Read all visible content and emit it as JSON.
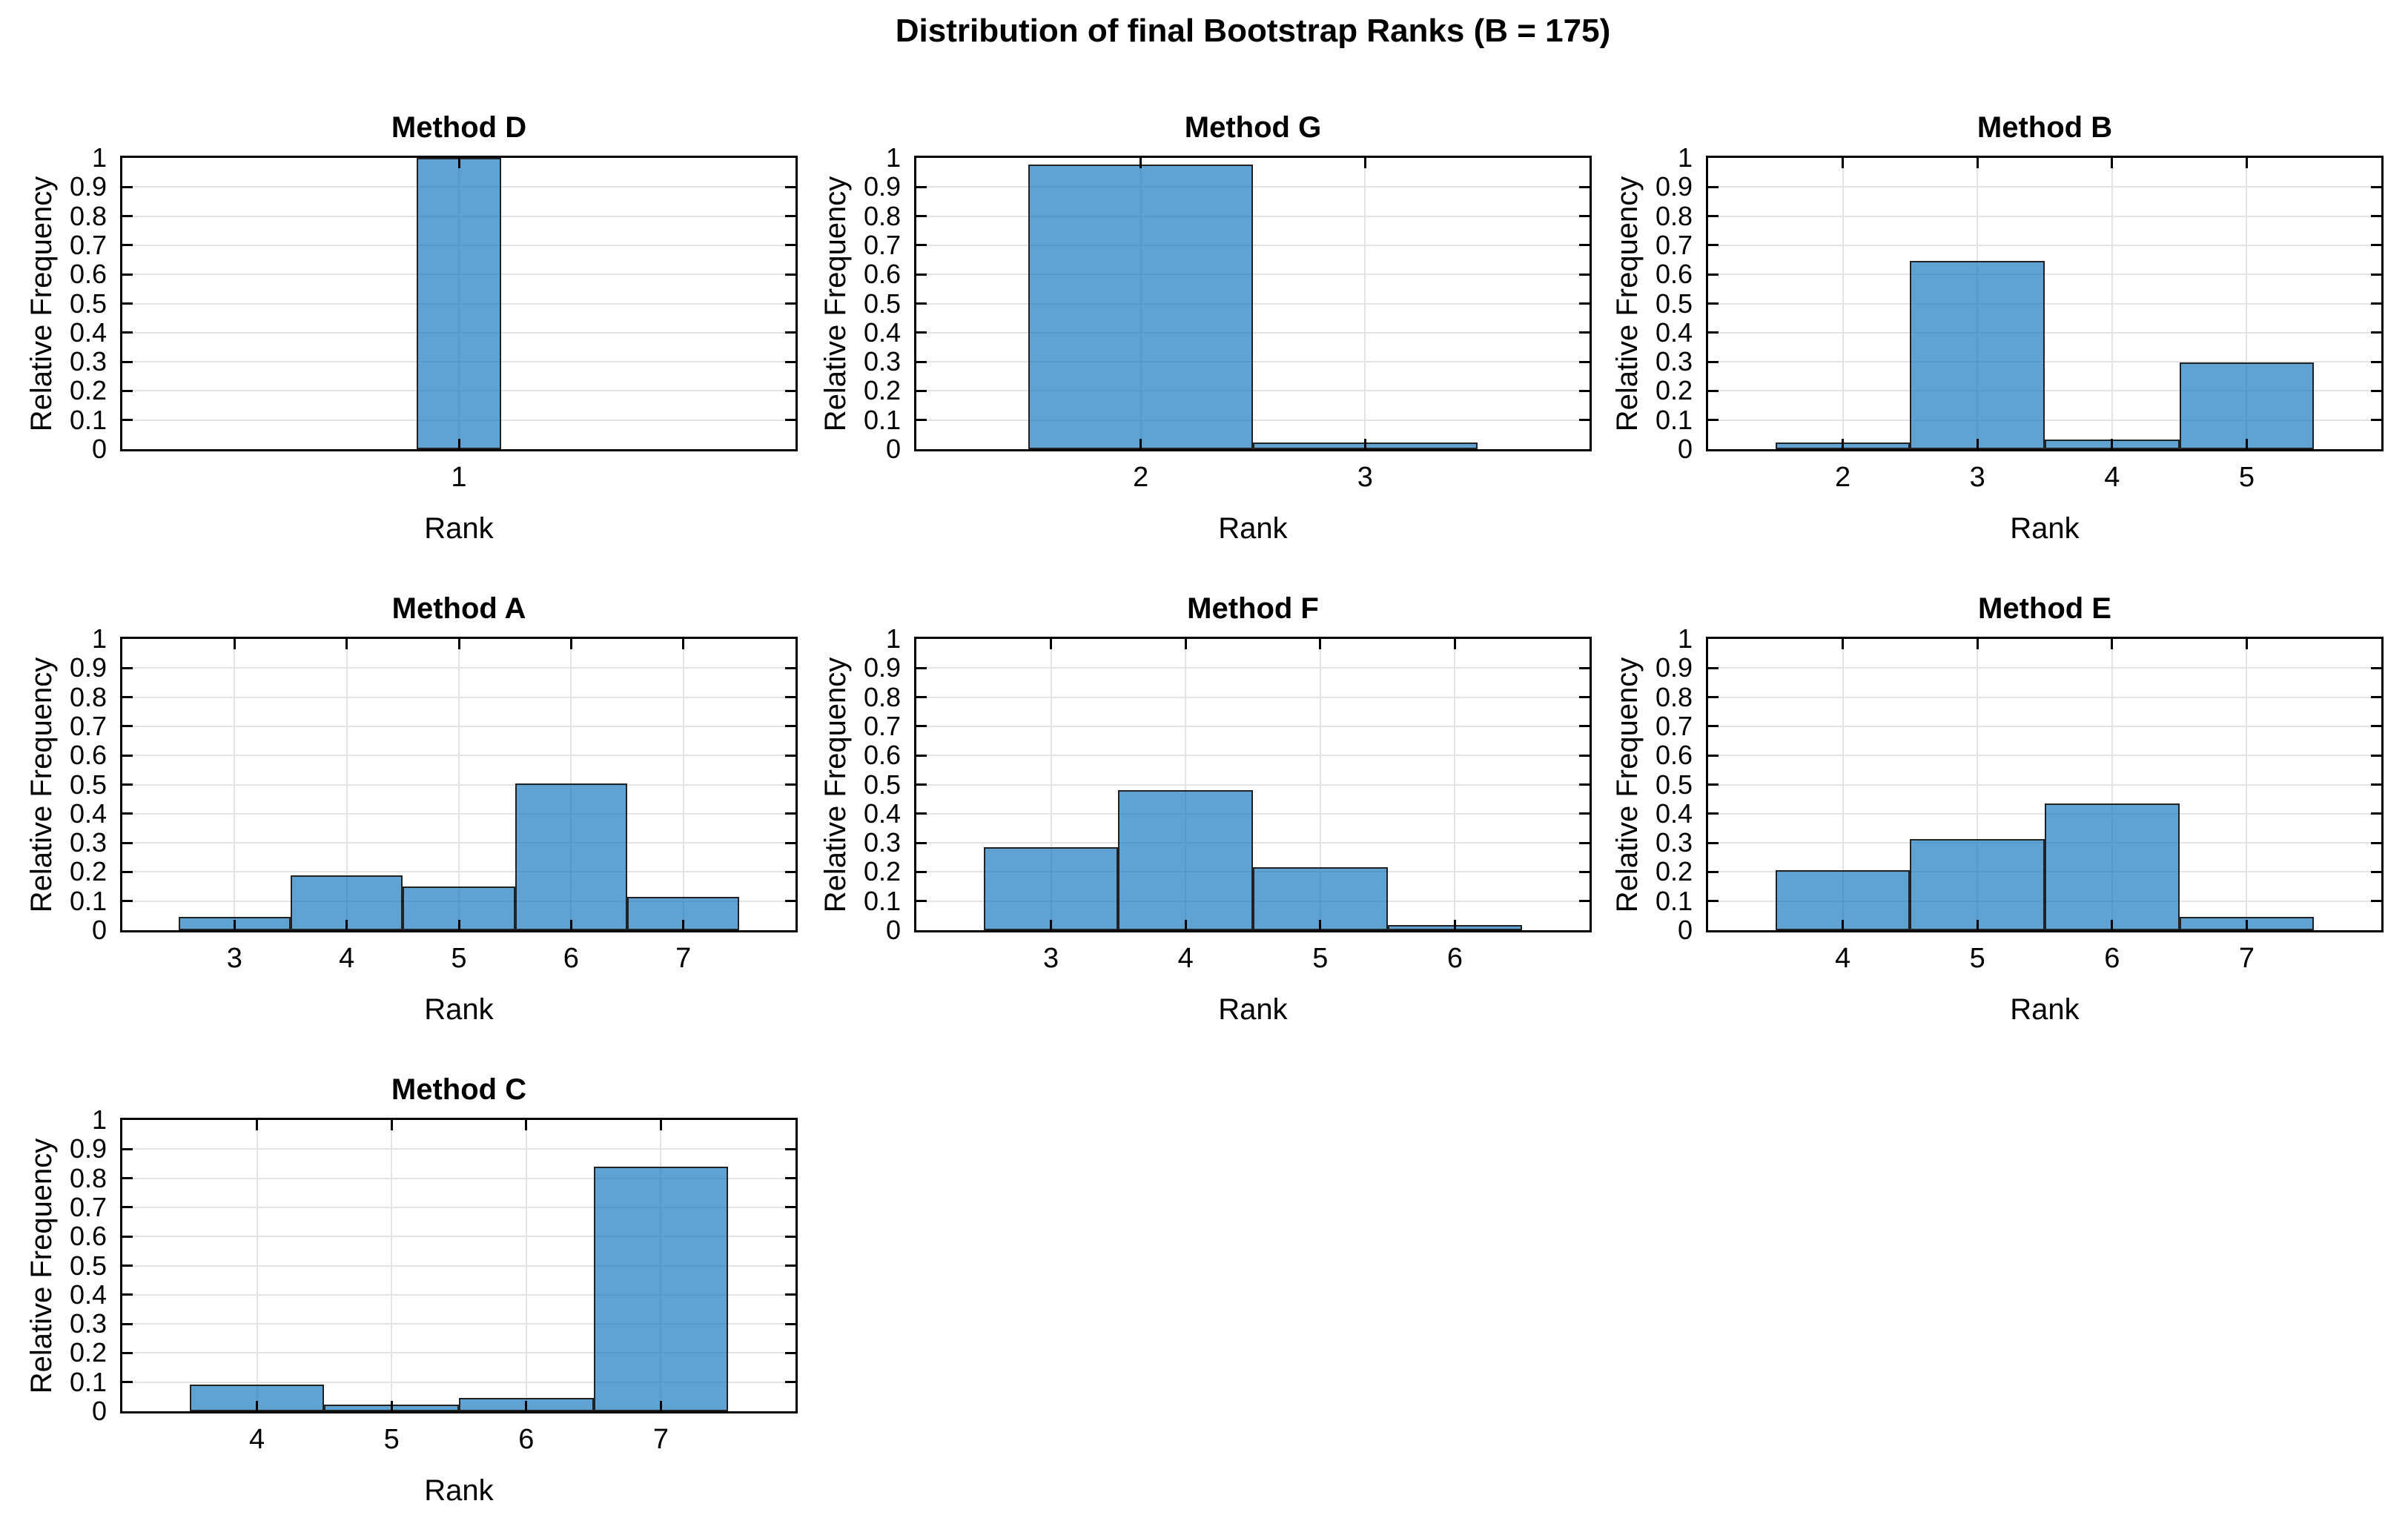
{
  "figure": {
    "title": "Distribution of final Bootstrap Ranks (B = 175)",
    "colors": {
      "bar_fill": "rgba(13,116,186,0.66)",
      "bar_edge": "#222222",
      "grid": "#E4E4E4",
      "axis": "#000000",
      "text": "#000000",
      "background": "#FFFFFF"
    }
  },
  "axes_defaults": {
    "xlabel": "Rank",
    "ylabel": "Relative Frequency",
    "ylim": [
      0,
      1
    ],
    "yticks": [
      0,
      0.1,
      0.2,
      0.3,
      0.4,
      0.5,
      0.6,
      0.7,
      0.8,
      0.9,
      1
    ],
    "ytick_labels": [
      "0",
      "0.1",
      "0.2",
      "0.3",
      "0.4",
      "0.5",
      "0.6",
      "0.7",
      "0.8",
      "0.9",
      "1"
    ],
    "grid": "on",
    "bin_width": 1
  },
  "chart_data": [
    {
      "type": "bar",
      "title": "Method D",
      "categories": [
        1
      ],
      "values": [
        1.0
      ],
      "xticks": [
        "1"
      ],
      "xlim": [
        -3,
        5
      ],
      "row": 0,
      "col": 0
    },
    {
      "type": "bar",
      "title": "Method G",
      "categories": [
        2,
        3
      ],
      "values": [
        0.977,
        0.023
      ],
      "xticks": [
        "2",
        "3"
      ],
      "xlim": [
        1,
        4
      ],
      "row": 0,
      "col": 1
    },
    {
      "type": "bar",
      "title": "Method B",
      "categories": [
        2,
        3,
        4,
        5
      ],
      "values": [
        0.023,
        0.646,
        0.034,
        0.297
      ],
      "xticks": [
        "2",
        "3",
        "4",
        "5"
      ],
      "xlim": [
        1,
        6
      ],
      "row": 0,
      "col": 2
    },
    {
      "type": "bar",
      "title": "Method A",
      "categories": [
        3,
        4,
        5,
        6,
        7
      ],
      "values": [
        0.046,
        0.189,
        0.149,
        0.503,
        0.114
      ],
      "xticks": [
        "3",
        "4",
        "5",
        "6",
        "7"
      ],
      "xlim": [
        2,
        8
      ],
      "row": 1,
      "col": 0
    },
    {
      "type": "bar",
      "title": "Method F",
      "categories": [
        3,
        4,
        5,
        6
      ],
      "values": [
        0.286,
        0.48,
        0.217,
        0.017
      ],
      "xticks": [
        "3",
        "4",
        "5",
        "6"
      ],
      "xlim": [
        2,
        7
      ],
      "row": 1,
      "col": 1
    },
    {
      "type": "bar",
      "title": "Method E",
      "categories": [
        4,
        5,
        6,
        7
      ],
      "values": [
        0.206,
        0.314,
        0.434,
        0.046
      ],
      "xticks": [
        "4",
        "5",
        "6",
        "7"
      ],
      "xlim": [
        3,
        8
      ],
      "row": 1,
      "col": 2
    },
    {
      "type": "bar",
      "title": "Method C",
      "categories": [
        4,
        5,
        6,
        7
      ],
      "values": [
        0.091,
        0.023,
        0.046,
        0.84
      ],
      "xticks": [
        "4",
        "5",
        "6",
        "7"
      ],
      "xlim": [
        3,
        8
      ],
      "row": 2,
      "col": 0
    }
  ]
}
